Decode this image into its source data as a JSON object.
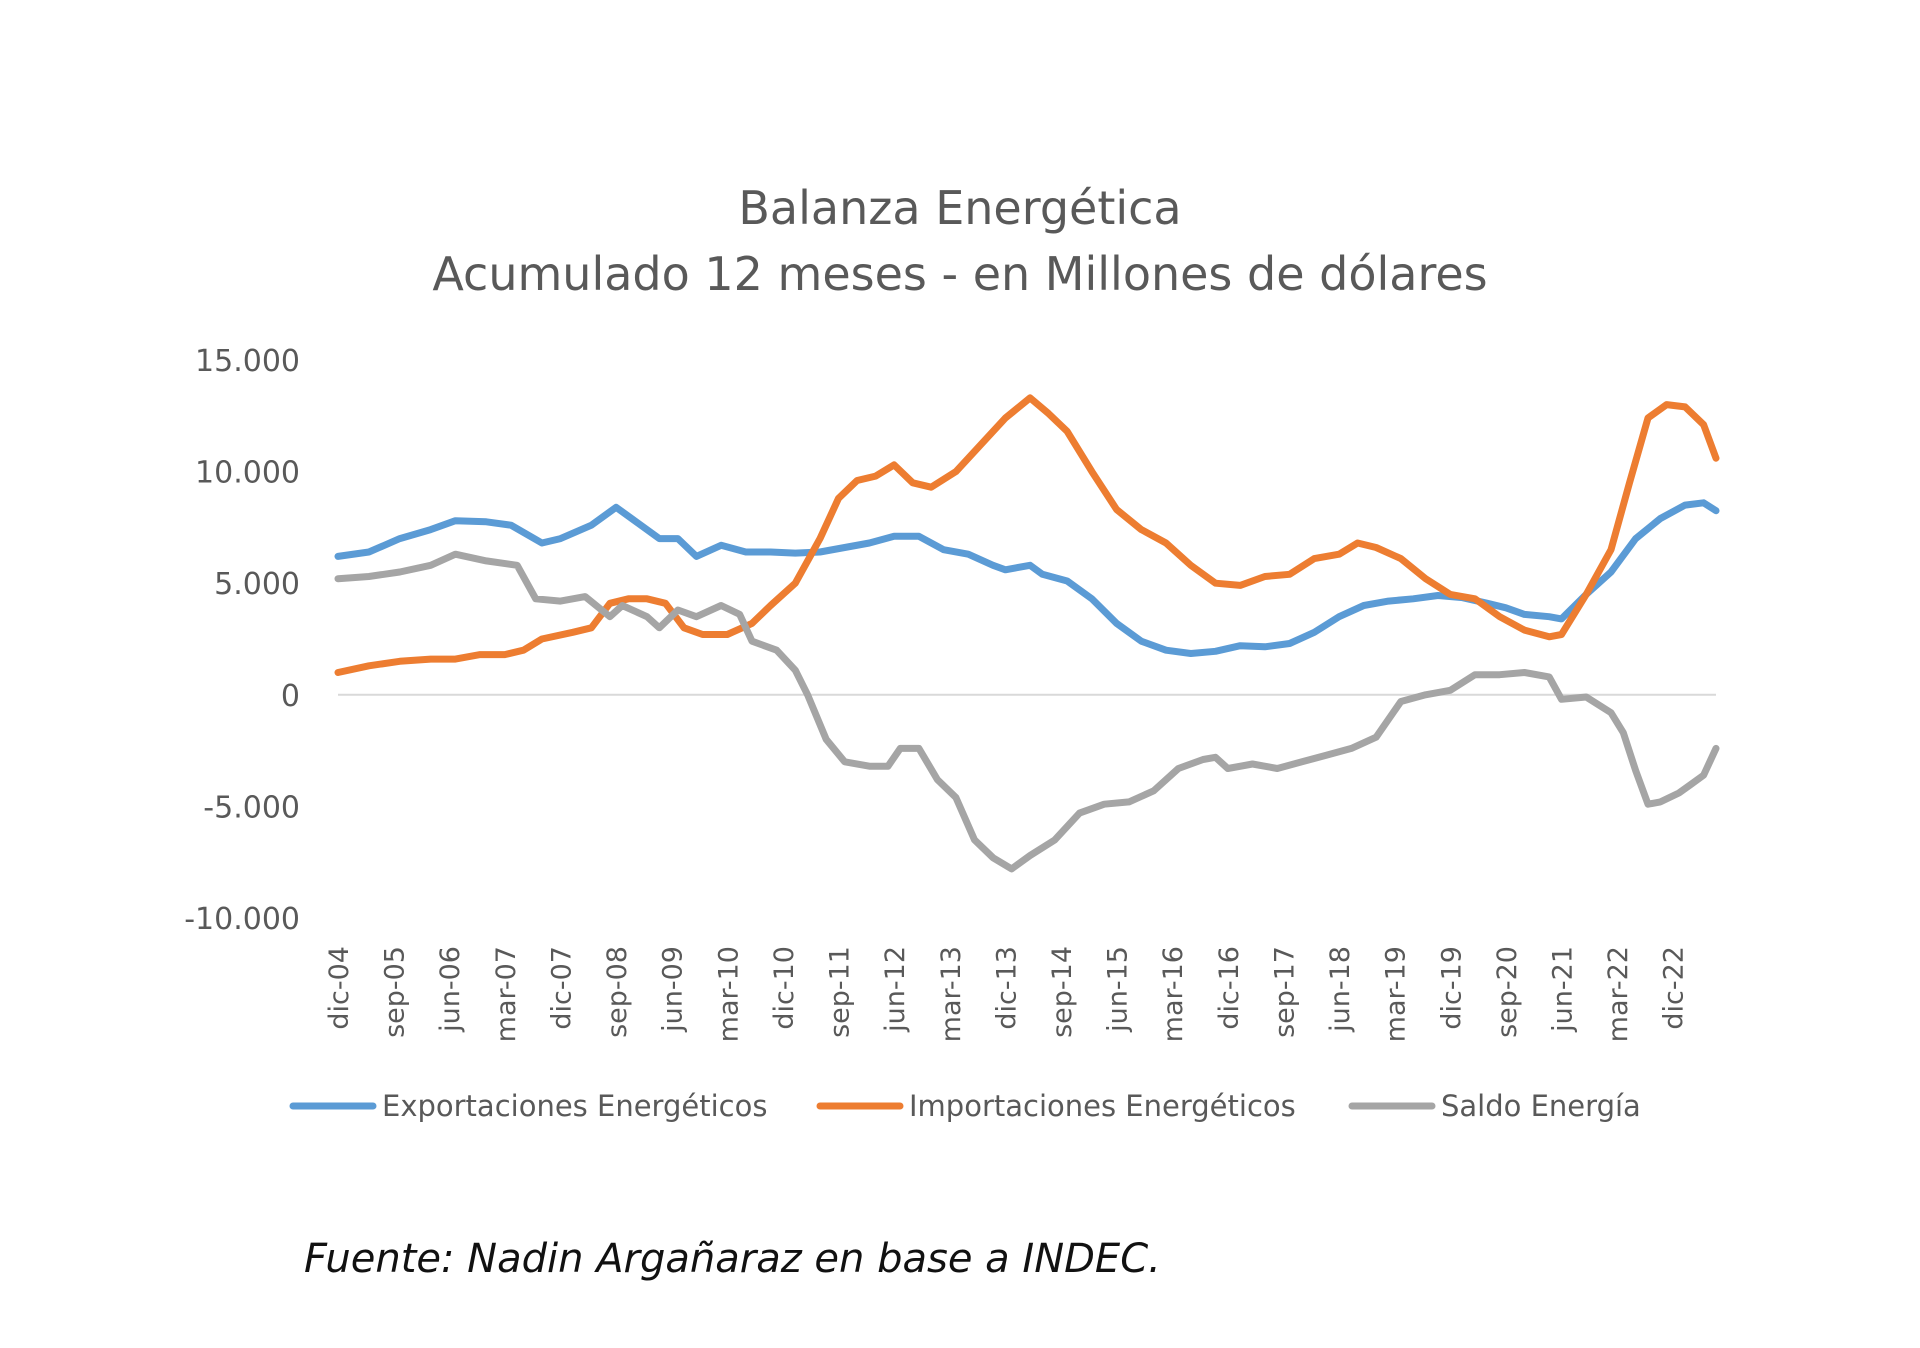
{
  "chart_data": {
    "type": "line",
    "title": "Balanza Energética",
    "subtitle": "Acumulado 12 meses - en Millones de dólares",
    "xlabel": "",
    "ylabel": "",
    "ylim": [
      -10000,
      15000
    ],
    "yticks": [
      15000,
      10000,
      5000,
      0,
      -5000,
      -10000
    ],
    "ytick_labels": [
      "15.000",
      "10.000",
      "5.000",
      "0",
      "-5.000",
      "-10.000"
    ],
    "x_start": "dic-04",
    "x_end": "jul-23",
    "x_tick_labels": [
      "dic-04",
      "sep-05",
      "jun-06",
      "mar-07",
      "dic-07",
      "sep-08",
      "jun-09",
      "mar-10",
      "dic-10",
      "sep-11",
      "jun-12",
      "mar-13",
      "dic-13",
      "sep-14",
      "jun-15",
      "mar-16",
      "dic-16",
      "sep-17",
      "jun-18",
      "mar-19",
      "dic-19",
      "sep-20",
      "jun-21",
      "mar-22",
      "dic-22"
    ],
    "x_tick_months": [
      0,
      9,
      18,
      27,
      36,
      45,
      54,
      63,
      72,
      81,
      90,
      99,
      108,
      117,
      126,
      135,
      144,
      153,
      162,
      171,
      180,
      189,
      198,
      207,
      216
    ],
    "x_month_max": 223,
    "grid": false,
    "zero_line": true,
    "legend_position": "bottom",
    "series": [
      {
        "name": "Exportaciones Energéticos",
        "color": "#5B9BD5",
        "points": [
          [
            0,
            6200
          ],
          [
            5,
            6400
          ],
          [
            10,
            7000
          ],
          [
            15,
            7400
          ],
          [
            19,
            7800
          ],
          [
            24,
            7750
          ],
          [
            28,
            7600
          ],
          [
            33,
            6800
          ],
          [
            36,
            7000
          ],
          [
            41,
            7600
          ],
          [
            45,
            8400
          ],
          [
            48,
            7800
          ],
          [
            52,
            7000
          ],
          [
            55,
            7000
          ],
          [
            58,
            6200
          ],
          [
            62,
            6700
          ],
          [
            66,
            6400
          ],
          [
            70,
            6400
          ],
          [
            74,
            6350
          ],
          [
            78,
            6400
          ],
          [
            82,
            6600
          ],
          [
            86,
            6800
          ],
          [
            90,
            7100
          ],
          [
            94,
            7100
          ],
          [
            98,
            6500
          ],
          [
            102,
            6300
          ],
          [
            106,
            5800
          ],
          [
            108,
            5600
          ],
          [
            112,
            5800
          ],
          [
            114,
            5400
          ],
          [
            118,
            5100
          ],
          [
            122,
            4300
          ],
          [
            126,
            3200
          ],
          [
            130,
            2400
          ],
          [
            134,
            2000
          ],
          [
            138,
            1850
          ],
          [
            142,
            1950
          ],
          [
            146,
            2200
          ],
          [
            150,
            2150
          ],
          [
            154,
            2300
          ],
          [
            158,
            2800
          ],
          [
            162,
            3500
          ],
          [
            166,
            4000
          ],
          [
            170,
            4200
          ],
          [
            174,
            4300
          ],
          [
            178,
            4450
          ],
          [
            182,
            4350
          ],
          [
            186,
            4100
          ],
          [
            189,
            3900
          ],
          [
            192,
            3600
          ],
          [
            196,
            3500
          ],
          [
            198,
            3400
          ],
          [
            202,
            4500
          ],
          [
            206,
            5500
          ],
          [
            210,
            7000
          ],
          [
            214,
            7900
          ],
          [
            218,
            8500
          ],
          [
            221,
            8600
          ],
          [
            223,
            8250
          ]
        ]
      },
      {
        "name": "Importaciones Energéticos",
        "color": "#ED7D31",
        "points": [
          [
            0,
            1000
          ],
          [
            5,
            1300
          ],
          [
            10,
            1500
          ],
          [
            15,
            1600
          ],
          [
            19,
            1600
          ],
          [
            23,
            1800
          ],
          [
            27,
            1800
          ],
          [
            30,
            2000
          ],
          [
            33,
            2500
          ],
          [
            38,
            2800
          ],
          [
            41,
            3000
          ],
          [
            44,
            4100
          ],
          [
            47,
            4300
          ],
          [
            50,
            4300
          ],
          [
            53,
            4100
          ],
          [
            56,
            3000
          ],
          [
            59,
            2700
          ],
          [
            63,
            2700
          ],
          [
            67,
            3200
          ],
          [
            70,
            4000
          ],
          [
            74,
            5000
          ],
          [
            78,
            7000
          ],
          [
            81,
            8800
          ],
          [
            84,
            9600
          ],
          [
            87,
            9800
          ],
          [
            90,
            10300
          ],
          [
            93,
            9500
          ],
          [
            96,
            9300
          ],
          [
            100,
            10000
          ],
          [
            104,
            11200
          ],
          [
            108,
            12400
          ],
          [
            112,
            13300
          ],
          [
            115,
            12600
          ],
          [
            118,
            11800
          ],
          [
            122,
            10000
          ],
          [
            126,
            8300
          ],
          [
            130,
            7400
          ],
          [
            134,
            6800
          ],
          [
            138,
            5800
          ],
          [
            142,
            5000
          ],
          [
            146,
            4900
          ],
          [
            150,
            5300
          ],
          [
            154,
            5400
          ],
          [
            158,
            6100
          ],
          [
            162,
            6300
          ],
          [
            165,
            6800
          ],
          [
            168,
            6600
          ],
          [
            172,
            6100
          ],
          [
            176,
            5200
          ],
          [
            180,
            4500
          ],
          [
            184,
            4300
          ],
          [
            188,
            3500
          ],
          [
            192,
            2900
          ],
          [
            196,
            2600
          ],
          [
            198,
            2700
          ],
          [
            202,
            4500
          ],
          [
            206,
            6500
          ],
          [
            209,
            9500
          ],
          [
            212,
            12400
          ],
          [
            215,
            13000
          ],
          [
            218,
            12900
          ],
          [
            221,
            12100
          ],
          [
            223,
            10600
          ]
        ]
      },
      {
        "name": "Saldo Energía",
        "color": "#A5A5A5",
        "points": [
          [
            0,
            5200
          ],
          [
            5,
            5300
          ],
          [
            10,
            5500
          ],
          [
            15,
            5800
          ],
          [
            19,
            6300
          ],
          [
            24,
            6000
          ],
          [
            29,
            5800
          ],
          [
            32,
            4300
          ],
          [
            36,
            4200
          ],
          [
            40,
            4400
          ],
          [
            44,
            3500
          ],
          [
            46,
            4000
          ],
          [
            50,
            3500
          ],
          [
            52,
            3000
          ],
          [
            55,
            3800
          ],
          [
            58,
            3500
          ],
          [
            62,
            4000
          ],
          [
            65,
            3600
          ],
          [
            67,
            2400
          ],
          [
            71,
            2000
          ],
          [
            74,
            1100
          ],
          [
            76,
            0
          ],
          [
            79,
            -2000
          ],
          [
            82,
            -3000
          ],
          [
            86,
            -3200
          ],
          [
            89,
            -3200
          ],
          [
            91,
            -2400
          ],
          [
            94,
            -2400
          ],
          [
            97,
            -3800
          ],
          [
            100,
            -4600
          ],
          [
            103,
            -6500
          ],
          [
            106,
            -7300
          ],
          [
            109,
            -7800
          ],
          [
            112,
            -7200
          ],
          [
            116,
            -6500
          ],
          [
            120,
            -5300
          ],
          [
            124,
            -4900
          ],
          [
            128,
            -4800
          ],
          [
            132,
            -4300
          ],
          [
            136,
            -3300
          ],
          [
            140,
            -2900
          ],
          [
            142,
            -2800
          ],
          [
            144,
            -3300
          ],
          [
            148,
            -3100
          ],
          [
            152,
            -3300
          ],
          [
            156,
            -3000
          ],
          [
            160,
            -2700
          ],
          [
            164,
            -2400
          ],
          [
            168,
            -1900
          ],
          [
            172,
            -300
          ],
          [
            176,
            0
          ],
          [
            180,
            200
          ],
          [
            184,
            900
          ],
          [
            188,
            900
          ],
          [
            192,
            1000
          ],
          [
            196,
            800
          ],
          [
            198,
            -200
          ],
          [
            202,
            -100
          ],
          [
            206,
            -800
          ],
          [
            208,
            -1700
          ],
          [
            210,
            -3400
          ],
          [
            212,
            -4900
          ],
          [
            214,
            -4800
          ],
          [
            217,
            -4400
          ],
          [
            219,
            -4000
          ],
          [
            221,
            -3600
          ],
          [
            223,
            -2400
          ]
        ]
      }
    ]
  },
  "source_note": "Fuente: Nadin Argañaraz en base a INDEC."
}
